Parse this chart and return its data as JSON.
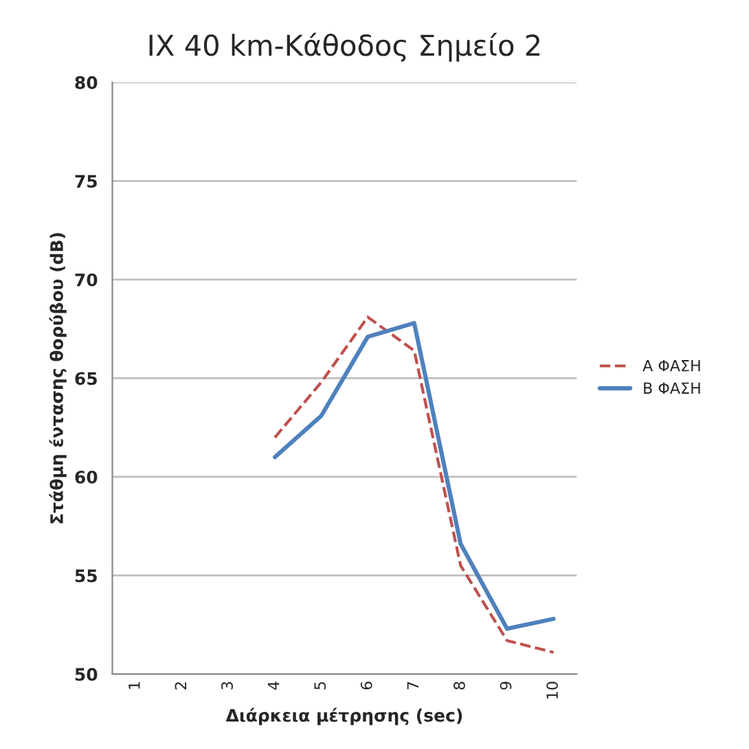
{
  "chart_data": {
    "type": "line",
    "title": "IX 40 km-Κάθοδος Σημείο 2",
    "xlabel": "Διάρκεια μέτρησης (sec)",
    "ylabel": "Στάθμη έντασης θορύβου (dB)",
    "categories": [
      "1",
      "2",
      "3",
      "4",
      "5",
      "6",
      "7",
      "8",
      "9",
      "10"
    ],
    "series": [
      {
        "name": "Α ΦΑΣΗ",
        "color": "#c0504d",
        "line_style": "dashed",
        "values": [
          null,
          null,
          null,
          62.0,
          64.8,
          68.1,
          66.4,
          55.5,
          51.7,
          51.1
        ]
      },
      {
        "name": "Β ΦΑΣΗ",
        "color": "#4f81bd",
        "line_style": "solid",
        "values": [
          null,
          null,
          null,
          61.0,
          63.1,
          67.1,
          67.8,
          56.6,
          52.3,
          52.8
        ]
      }
    ],
    "ylim": [
      50,
      80
    ],
    "yticks": [
      50,
      55,
      60,
      65,
      70,
      75,
      80
    ],
    "grid": "y",
    "legend": "right"
  }
}
